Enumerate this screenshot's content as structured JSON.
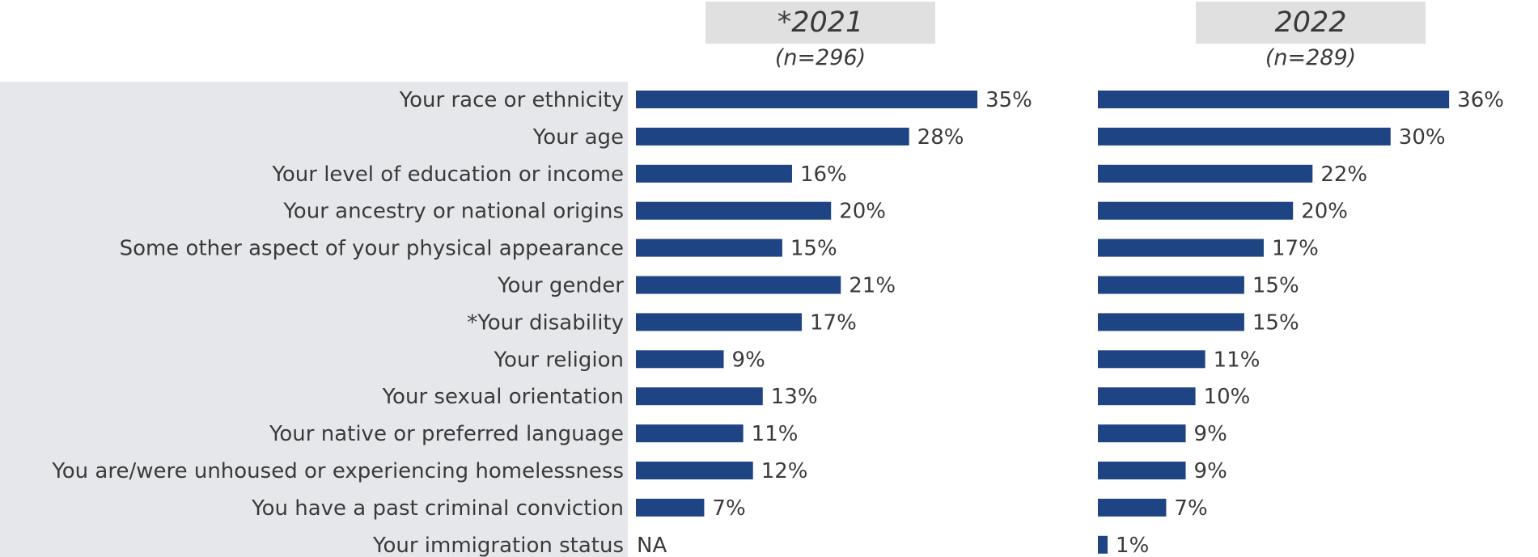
{
  "chart_data": {
    "type": "bar",
    "orientation": "horizontal",
    "categories": [
      "Your race or ethnicity",
      "Your age",
      "Your level of education or income",
      "Your ancestry or national origins",
      "Some other aspect of your physical appearance",
      "Your gender",
      "*Your disability",
      "Your religion",
      "Your sexual orientation",
      "Your native or preferred language",
      "You are/were unhoused or experiencing homelessness",
      "You have a past criminal conviction",
      "Your immigration status"
    ],
    "series": [
      {
        "name": "*2021",
        "n_label": "(n=296)",
        "values": [
          35,
          28,
          16,
          20,
          15,
          21,
          17,
          9,
          13,
          11,
          12,
          7,
          null
        ],
        "value_labels": [
          "35%",
          "28%",
          "16%",
          "20%",
          "15%",
          "21%",
          "17%",
          "9%",
          "13%",
          "11%",
          "12%",
          "7%",
          "NA"
        ]
      },
      {
        "name": "2022",
        "n_label": "(n=289)",
        "values": [
          36,
          30,
          22,
          20,
          17,
          15,
          15,
          11,
          10,
          9,
          9,
          7,
          1
        ],
        "value_labels": [
          "36%",
          "30%",
          "22%",
          "20%",
          "17%",
          "15%",
          "15%",
          "11%",
          "10%",
          "9%",
          "9%",
          "7%",
          "1%"
        ]
      }
    ],
    "xlim": [
      0,
      40
    ],
    "grid": false,
    "legend": "none",
    "bar_color": "#1f4484"
  }
}
